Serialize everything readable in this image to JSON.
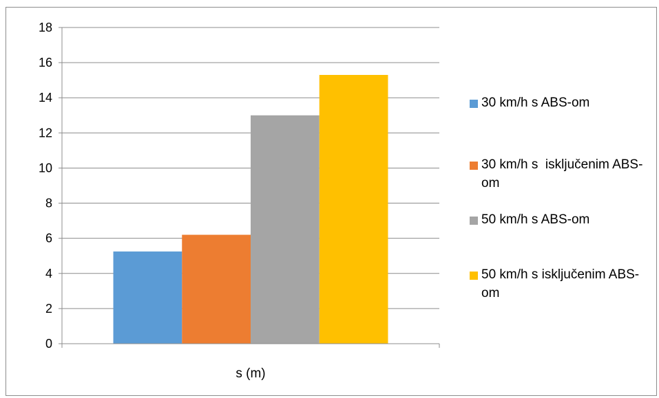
{
  "chart_data": {
    "type": "bar",
    "categories": [
      "s (m)"
    ],
    "series": [
      {
        "name": "30 km/h s ABS-om",
        "values": [
          5.25
        ],
        "color": "#5b9bd5"
      },
      {
        "name": "30 km/h s  isključenim ABS-om",
        "values": [
          6.2
        ],
        "color": "#ed7d31"
      },
      {
        "name": "50 km/h s ABS-om",
        "values": [
          13.0
        ],
        "color": "#a5a5a5"
      },
      {
        "name": "50 km/h s isključenim ABS-om",
        "values": [
          15.3
        ],
        "color": "#ffc000"
      }
    ],
    "yticks": [
      "0",
      "2",
      "4",
      "6",
      "8",
      "10",
      "12",
      "14",
      "16",
      "18"
    ],
    "ylim": [
      0,
      18
    ],
    "xlabel": "s (m)",
    "grid": true,
    "legend_position": "right",
    "gridline_color": "#8c8c8c"
  }
}
